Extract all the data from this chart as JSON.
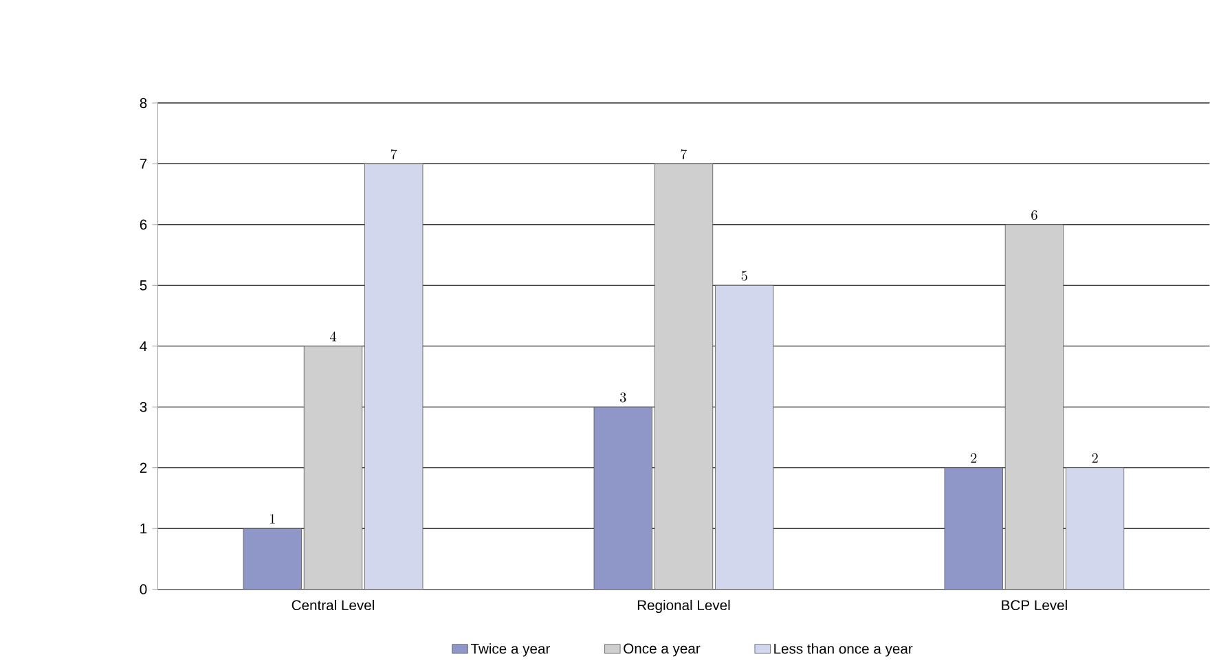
{
  "chart_data": {
    "type": "bar",
    "categories": [
      "Central Level",
      "Regional Level",
      "BCP Level"
    ],
    "series": [
      {
        "name": "Twice a year",
        "color": "#8e97c8",
        "values": [
          1,
          3,
          2
        ]
      },
      {
        "name": "Once a year",
        "color": "#cfcfcf",
        "values": [
          4,
          7,
          6
        ]
      },
      {
        "name": "Less than once a year",
        "color": "#d3d7ee",
        "values": [
          7,
          5,
          2
        ]
      }
    ],
    "ylim": [
      0,
      8
    ],
    "yticks": [
      0,
      1,
      2,
      3,
      4,
      5,
      6,
      7,
      8
    ],
    "grid": "y",
    "legend": "bottom",
    "data_labels": true
  }
}
